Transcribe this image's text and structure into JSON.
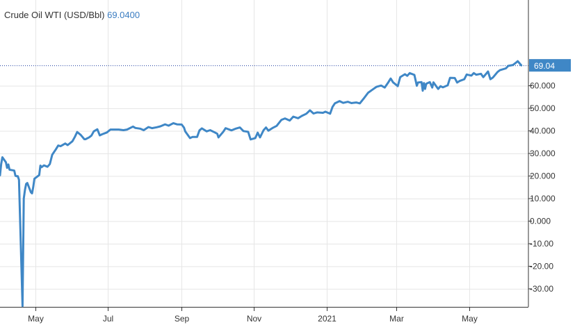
{
  "chart_data": {
    "type": "line",
    "title": "Crude Oil WTI (USD/Bbl)",
    "title_value": "69.0400",
    "last_value_label": "69.04",
    "xlabel": "",
    "ylabel": "",
    "ylim": [
      -38,
      98
    ],
    "y_ticks": [
      -30,
      -20,
      -10,
      0,
      10,
      20,
      30,
      40,
      50,
      60
    ],
    "y_tick_labels": [
      "-30.00",
      "-20.00",
      "-10.00",
      "0.000",
      "10.000",
      "20.000",
      "30.000",
      "40.000",
      "50.000",
      "60.000"
    ],
    "x_ticks": [
      "2020-05-01",
      "2020-07-01",
      "2020-09-01",
      "2020-11-01",
      "2021-01-01",
      "2021-03-01",
      "2021-05-01"
    ],
    "x_tick_labels": [
      "May",
      "Jul",
      "Sep",
      "Nov",
      "2021",
      "Mar",
      "May"
    ],
    "x_range": [
      "2020-04-01",
      "2021-06-20"
    ],
    "grid": true,
    "colors": {
      "line": "#3f87c6",
      "last_label_bg": "#3f87c6",
      "grid": "#e6e6e6"
    },
    "series": [
      {
        "values": [
          [
            "2020-04-01",
            20.3
          ],
          [
            "2020-04-02",
            25.3
          ],
          [
            "2020-04-03",
            28.3
          ],
          [
            "2020-04-06",
            26.1
          ],
          [
            "2020-04-07",
            23.6
          ],
          [
            "2020-04-08",
            25.1
          ],
          [
            "2020-04-09",
            22.8
          ],
          [
            "2020-04-13",
            22.4
          ],
          [
            "2020-04-14",
            20.1
          ],
          [
            "2020-04-15",
            19.9
          ],
          [
            "2020-04-16",
            19.9
          ],
          [
            "2020-04-17",
            18.3
          ],
          [
            "2020-04-20",
            -37.6
          ],
          [
            "2020-04-21",
            10.0
          ],
          [
            "2020-04-22",
            13.8
          ],
          [
            "2020-04-23",
            16.5
          ],
          [
            "2020-04-24",
            16.9
          ],
          [
            "2020-04-27",
            12.8
          ],
          [
            "2020-04-28",
            12.3
          ],
          [
            "2020-04-29",
            15.1
          ],
          [
            "2020-04-30",
            18.8
          ],
          [
            "2020-05-04",
            20.4
          ],
          [
            "2020-05-05",
            24.6
          ],
          [
            "2020-05-06",
            23.9
          ],
          [
            "2020-05-08",
            24.7
          ],
          [
            "2020-05-11",
            24.1
          ],
          [
            "2020-05-13",
            25.3
          ],
          [
            "2020-05-15",
            29.4
          ],
          [
            "2020-05-18",
            31.8
          ],
          [
            "2020-05-20",
            33.5
          ],
          [
            "2020-05-22",
            33.2
          ],
          [
            "2020-05-26",
            34.4
          ],
          [
            "2020-05-28",
            33.7
          ],
          [
            "2020-06-01",
            35.4
          ],
          [
            "2020-06-03",
            37.3
          ],
          [
            "2020-06-05",
            39.5
          ],
          [
            "2020-06-08",
            38.2
          ],
          [
            "2020-06-11",
            36.3
          ],
          [
            "2020-06-12",
            36.3
          ],
          [
            "2020-06-15",
            37.1
          ],
          [
            "2020-06-17",
            37.9
          ],
          [
            "2020-06-19",
            39.8
          ],
          [
            "2020-06-22",
            40.7
          ],
          [
            "2020-06-24",
            38.0
          ],
          [
            "2020-06-26",
            38.5
          ],
          [
            "2020-06-30",
            39.3
          ],
          [
            "2020-07-03",
            40.6
          ],
          [
            "2020-07-07",
            40.6
          ],
          [
            "2020-07-10",
            40.6
          ],
          [
            "2020-07-14",
            40.3
          ],
          [
            "2020-07-17",
            40.6
          ],
          [
            "2020-07-22",
            41.9
          ],
          [
            "2020-07-24",
            41.3
          ],
          [
            "2020-07-28",
            41.0
          ],
          [
            "2020-07-31",
            40.3
          ],
          [
            "2020-08-04",
            41.7
          ],
          [
            "2020-08-07",
            41.2
          ],
          [
            "2020-08-11",
            41.6
          ],
          [
            "2020-08-14",
            42.0
          ],
          [
            "2020-08-18",
            42.9
          ],
          [
            "2020-08-21",
            42.3
          ],
          [
            "2020-08-25",
            43.4
          ],
          [
            "2020-08-28",
            42.9
          ],
          [
            "2020-09-01",
            42.8
          ],
          [
            "2020-09-03",
            41.4
          ],
          [
            "2020-09-04",
            39.8
          ],
          [
            "2020-09-08",
            36.8
          ],
          [
            "2020-09-10",
            37.3
          ],
          [
            "2020-09-14",
            37.3
          ],
          [
            "2020-09-16",
            40.2
          ],
          [
            "2020-09-18",
            41.1
          ],
          [
            "2020-09-22",
            39.8
          ],
          [
            "2020-09-25",
            40.3
          ],
          [
            "2020-09-29",
            39.3
          ],
          [
            "2020-10-01",
            38.7
          ],
          [
            "2020-10-02",
            37.1
          ],
          [
            "2020-10-06",
            39.6
          ],
          [
            "2020-10-08",
            41.2
          ],
          [
            "2020-10-13",
            40.2
          ],
          [
            "2020-10-16",
            40.9
          ],
          [
            "2020-10-20",
            41.5
          ],
          [
            "2020-10-23",
            39.9
          ],
          [
            "2020-10-27",
            39.6
          ],
          [
            "2020-10-29",
            36.2
          ],
          [
            "2020-11-02",
            36.8
          ],
          [
            "2020-11-04",
            39.2
          ],
          [
            "2020-11-06",
            37.1
          ],
          [
            "2020-11-09",
            40.3
          ],
          [
            "2020-11-11",
            41.5
          ],
          [
            "2020-11-13",
            40.1
          ],
          [
            "2020-11-17",
            41.4
          ],
          [
            "2020-11-20",
            42.2
          ],
          [
            "2020-11-24",
            44.9
          ],
          [
            "2020-11-27",
            45.5
          ],
          [
            "2020-12-01",
            44.6
          ],
          [
            "2020-12-04",
            46.3
          ],
          [
            "2020-12-08",
            45.6
          ],
          [
            "2020-12-11",
            46.6
          ],
          [
            "2020-12-15",
            47.6
          ],
          [
            "2020-12-18",
            49.1
          ],
          [
            "2020-12-21",
            47.7
          ],
          [
            "2020-12-24",
            48.2
          ],
          [
            "2020-12-29",
            48.0
          ],
          [
            "2020-12-31",
            48.5
          ],
          [
            "2021-01-04",
            47.6
          ],
          [
            "2021-01-06",
            50.6
          ],
          [
            "2021-01-08",
            52.2
          ],
          [
            "2021-01-12",
            53.2
          ],
          [
            "2021-01-15",
            52.4
          ],
          [
            "2021-01-19",
            52.9
          ],
          [
            "2021-01-22",
            52.3
          ],
          [
            "2021-01-26",
            52.6
          ],
          [
            "2021-01-29",
            52.2
          ],
          [
            "2021-02-02",
            54.8
          ],
          [
            "2021-02-05",
            56.9
          ],
          [
            "2021-02-09",
            58.4
          ],
          [
            "2021-02-12",
            59.5
          ],
          [
            "2021-02-16",
            60.1
          ],
          [
            "2021-02-19",
            59.2
          ],
          [
            "2021-02-22",
            61.5
          ],
          [
            "2021-02-24",
            63.2
          ],
          [
            "2021-02-26",
            61.5
          ],
          [
            "2021-03-02",
            59.8
          ],
          [
            "2021-03-04",
            63.8
          ],
          [
            "2021-03-08",
            65.1
          ],
          [
            "2021-03-10",
            64.4
          ],
          [
            "2021-03-12",
            65.6
          ],
          [
            "2021-03-16",
            64.8
          ],
          [
            "2021-03-18",
            60.0
          ],
          [
            "2021-03-19",
            61.4
          ],
          [
            "2021-03-22",
            61.6
          ],
          [
            "2021-03-23",
            57.8
          ],
          [
            "2021-03-24",
            61.2
          ],
          [
            "2021-03-25",
            58.6
          ],
          [
            "2021-03-26",
            60.9
          ],
          [
            "2021-03-29",
            61.6
          ],
          [
            "2021-03-31",
            59.2
          ],
          [
            "2021-04-01",
            61.5
          ],
          [
            "2021-04-05",
            58.6
          ],
          [
            "2021-04-07",
            59.8
          ],
          [
            "2021-04-09",
            59.3
          ],
          [
            "2021-04-13",
            60.2
          ],
          [
            "2021-04-15",
            63.5
          ],
          [
            "2021-04-19",
            63.4
          ],
          [
            "2021-04-21",
            61.4
          ],
          [
            "2021-04-23",
            62.1
          ],
          [
            "2021-04-27",
            62.9
          ],
          [
            "2021-04-29",
            65.0
          ],
          [
            "2021-05-03",
            64.5
          ],
          [
            "2021-05-05",
            65.6
          ],
          [
            "2021-05-07",
            64.9
          ],
          [
            "2021-05-11",
            65.3
          ],
          [
            "2021-05-13",
            63.8
          ],
          [
            "2021-05-17",
            66.3
          ],
          [
            "2021-05-19",
            62.9
          ],
          [
            "2021-05-21",
            63.6
          ],
          [
            "2021-05-25",
            66.1
          ],
          [
            "2021-05-27",
            66.9
          ],
          [
            "2021-06-01",
            67.7
          ],
          [
            "2021-06-03",
            68.8
          ],
          [
            "2021-06-07",
            69.2
          ],
          [
            "2021-06-09",
            70.0
          ],
          [
            "2021-06-11",
            70.9
          ],
          [
            "2021-06-14",
            69.04
          ]
        ]
      }
    ]
  }
}
